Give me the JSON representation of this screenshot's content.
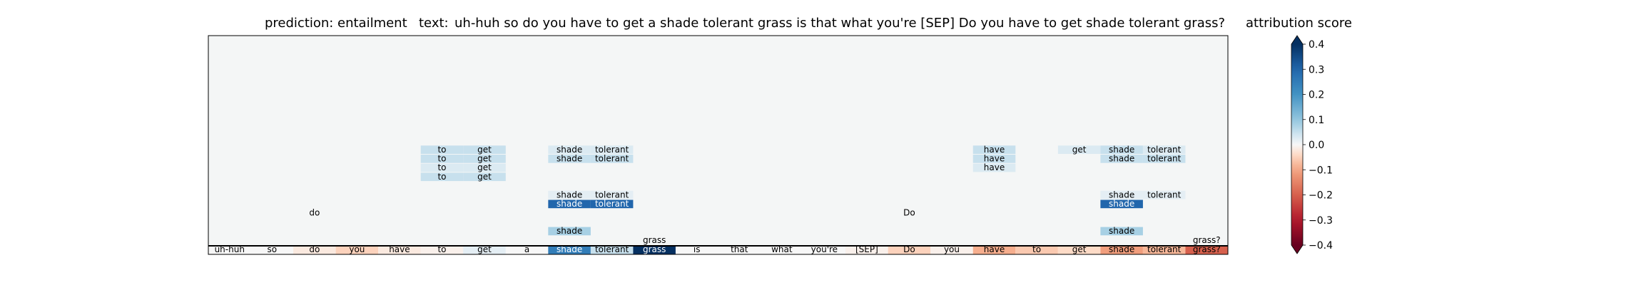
{
  "header": {
    "prediction_label": "prediction:",
    "prediction_value": "entailment",
    "text_label": "text:",
    "text_value": "uh-huh so do you have to get a shade tolerant grass is that what you're [SEP] Do you have to get shade tolerant grass?",
    "colorbar_title": "attribution score"
  },
  "chart_data": {
    "type": "heatmap",
    "title": "",
    "tokens": [
      "uh-huh",
      "so",
      "do",
      "you",
      "have",
      "to",
      "get",
      "a",
      "shade",
      "tolerant",
      "grass",
      "is",
      "that",
      "what",
      "you're",
      "[SEP]",
      "Do",
      "you",
      "have",
      "to",
      "get",
      "shade",
      "tolerant",
      "grass?"
    ],
    "token_attributions": [
      0.0,
      0.0,
      -0.02,
      -0.05,
      -0.02,
      -0.01,
      0.02,
      0.0,
      0.25,
      0.05,
      0.4,
      0.0,
      0.0,
      0.0,
      0.0,
      -0.01,
      -0.05,
      -0.01,
      -0.09,
      -0.06,
      -0.04,
      -0.11,
      -0.08,
      -0.2
    ],
    "layer_rows": [
      {
        "row": 1,
        "cells": [
          {
            "token_index": 10,
            "value": 0.0,
            "label": "grass"
          },
          {
            "token_index": 23,
            "value": 0.0,
            "label": "grass?"
          }
        ]
      },
      {
        "row": 2,
        "cells": [
          {
            "token_index": 8,
            "value": 0.08,
            "label": "shade"
          },
          {
            "token_index": 21,
            "value": 0.08,
            "label": "shade"
          }
        ]
      },
      {
        "row": 4,
        "cells": [
          {
            "token_index": 2,
            "value": 0.0,
            "label": "do"
          },
          {
            "token_index": 16,
            "value": 0.0,
            "label": "Do"
          }
        ]
      },
      {
        "row": 5,
        "cells": [
          {
            "token_index": 8,
            "value": 0.3,
            "label": "shade"
          },
          {
            "token_index": 9,
            "value": 0.3,
            "label": "tolerant"
          },
          {
            "token_index": 21,
            "value": 0.3,
            "label": "shade"
          }
        ]
      },
      {
        "row": 6,
        "cells": [
          {
            "token_index": 8,
            "value": 0.02,
            "label": "shade"
          },
          {
            "token_index": 9,
            "value": 0.02,
            "label": "tolerant"
          },
          {
            "token_index": 21,
            "value": 0.02,
            "label": "shade"
          },
          {
            "token_index": 22,
            "value": 0.02,
            "label": "tolerant"
          }
        ]
      },
      {
        "row": 8,
        "cells": [
          {
            "token_index": 5,
            "value": 0.05,
            "label": "to"
          },
          {
            "token_index": 6,
            "value": 0.05,
            "label": "get"
          }
        ]
      },
      {
        "row": 9,
        "cells": [
          {
            "token_index": 5,
            "value": 0.03,
            "label": "to"
          },
          {
            "token_index": 6,
            "value": 0.03,
            "label": "get"
          },
          {
            "token_index": 18,
            "value": 0.03,
            "label": "have"
          }
        ]
      },
      {
        "row": 10,
        "cells": [
          {
            "token_index": 5,
            "value": 0.05,
            "label": "to"
          },
          {
            "token_index": 6,
            "value": 0.05,
            "label": "get"
          },
          {
            "token_index": 8,
            "value": 0.05,
            "label": "shade"
          },
          {
            "token_index": 9,
            "value": 0.05,
            "label": "tolerant"
          },
          {
            "token_index": 18,
            "value": 0.05,
            "label": "have"
          },
          {
            "token_index": 21,
            "value": 0.05,
            "label": "shade"
          },
          {
            "token_index": 22,
            "value": 0.05,
            "label": "tolerant"
          }
        ]
      },
      {
        "row": 11,
        "cells": [
          {
            "token_index": 5,
            "value": 0.05,
            "label": "to"
          },
          {
            "token_index": 6,
            "value": 0.05,
            "label": "get"
          },
          {
            "token_index": 8,
            "value": 0.03,
            "label": "shade"
          },
          {
            "token_index": 9,
            "value": 0.03,
            "label": "tolerant"
          },
          {
            "token_index": 18,
            "value": 0.05,
            "label": "have"
          },
          {
            "token_index": 20,
            "value": 0.03,
            "label": "get"
          },
          {
            "token_index": 21,
            "value": 0.05,
            "label": "shade"
          },
          {
            "token_index": 22,
            "value": 0.03,
            "label": "tolerant"
          }
        ]
      }
    ],
    "colorbar": {
      "label": "attribution score",
      "vmin": -0.4,
      "vmax": 0.4,
      "ticks": [
        0.4,
        0.3,
        0.2,
        0.1,
        0.0,
        -0.1,
        -0.2,
        -0.3,
        -0.4
      ],
      "tick_labels": [
        "0.4",
        "0.3",
        "0.2",
        "0.1",
        "0.0",
        "−0.1",
        "−0.2",
        "−0.3",
        "−0.4"
      ],
      "colormap": "RdBu",
      "extend": "both"
    },
    "grid": false
  }
}
